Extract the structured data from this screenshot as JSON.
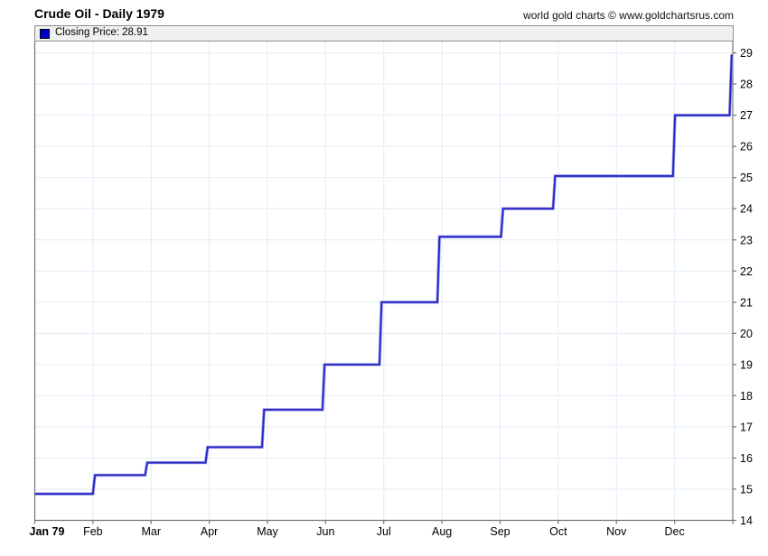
{
  "header": {
    "title": "Crude Oil - Daily 1979",
    "credit": "world gold charts © www.goldchartsrus.com"
  },
  "legend": {
    "swatch_color": "#0000cc",
    "label": "Closing Price: 28.91"
  },
  "chart_data": {
    "type": "line",
    "title": "Crude Oil - Daily 1979",
    "series_name": "Closing Price",
    "last_close": 28.91,
    "line_color": "#2424c8",
    "line_halo_color": "#9b9be4",
    "grid_color": "#e2ecf7",
    "axis_color": "#757575",
    "label_color": "#000000",
    "grid": true,
    "legend_position": "top-left-strip",
    "y_axis_side": "right",
    "ylim": [
      14,
      29
    ],
    "y_ticks": [
      14,
      15,
      16,
      17,
      18,
      19,
      20,
      21,
      22,
      23,
      24,
      25,
      26,
      27,
      28,
      29
    ],
    "x_ticks": [
      "Jan 79",
      "Feb",
      "Mar",
      "Apr",
      "May",
      "Jun",
      "Jul",
      "Aug",
      "Sep",
      "Oct",
      "Nov",
      "Dec"
    ],
    "monthly_levels": {
      "Jan": 14.85,
      "Feb": 15.45,
      "Mar": 15.85,
      "Apr": 16.35,
      "May": 17.55,
      "Jun": 19.0,
      "Jul": 21.0,
      "Aug": 23.1,
      "Sep": 24.0,
      "Oct": 25.05,
      "Nov": 25.05,
      "Dec": 27.0,
      "year_end": 28.91
    },
    "step_vertices": [
      [
        0.0,
        14.85
      ],
      [
        0.0832,
        14.85
      ],
      [
        0.0862,
        15.45
      ],
      [
        0.158,
        15.45
      ],
      [
        0.161,
        15.85
      ],
      [
        0.2446,
        15.85
      ],
      [
        0.2476,
        16.35
      ],
      [
        0.3256,
        16.35
      ],
      [
        0.3286,
        17.55
      ],
      [
        0.4122,
        17.55
      ],
      [
        0.4152,
        19.0
      ],
      [
        0.4938,
        19.0
      ],
      [
        0.4968,
        21.0
      ],
      [
        0.5768,
        21.0
      ],
      [
        0.5798,
        23.1
      ],
      [
        0.668,
        23.1
      ],
      [
        0.671,
        24.0
      ],
      [
        0.7425,
        24.0
      ],
      [
        0.7455,
        25.05
      ],
      [
        0.9143,
        25.05
      ],
      [
        0.9173,
        27.0
      ],
      [
        0.9955,
        27.0
      ],
      [
        0.9985,
        28.91
      ],
      [
        1.0,
        28.91
      ]
    ]
  }
}
